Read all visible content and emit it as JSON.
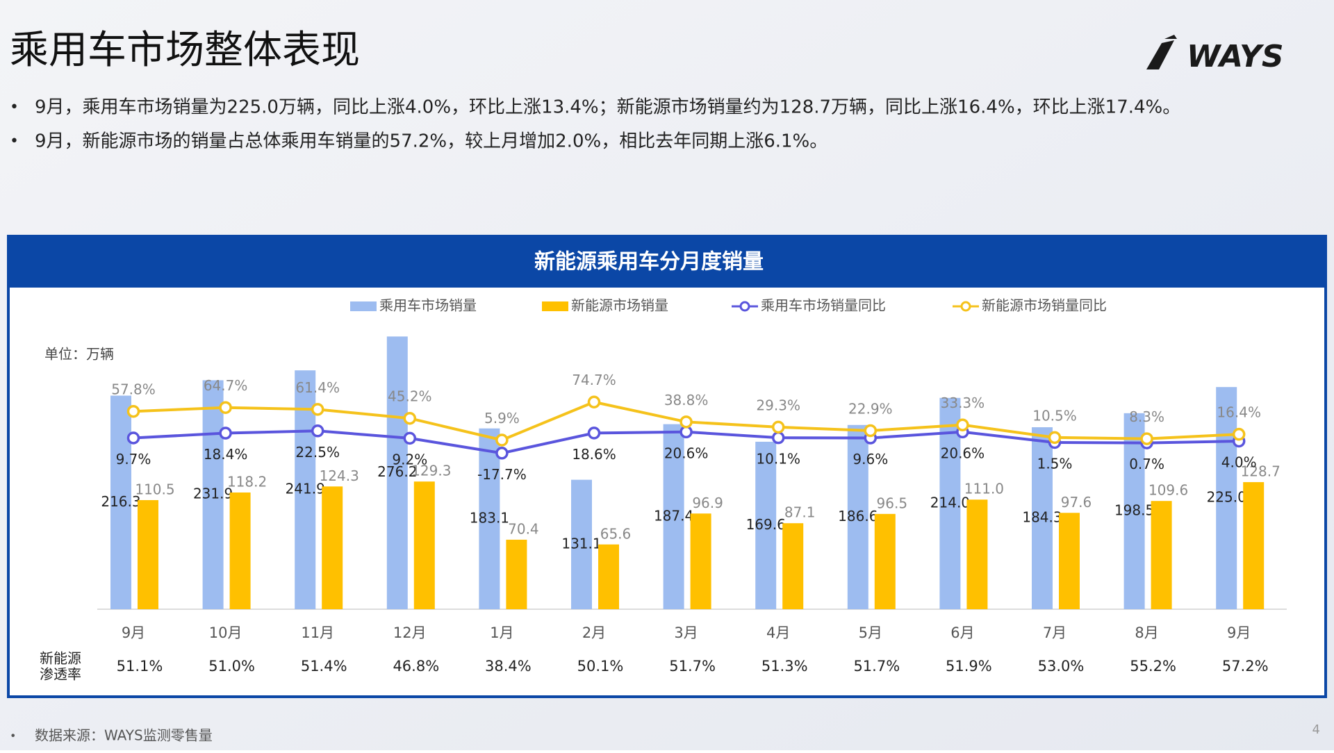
{
  "title": "乘用车市场整体表现",
  "logo": "WAYS",
  "bullets": [
    "9月，乘用车市场销量为225.0万辆，同比上涨4.0%，环比上涨13.4%；新能源市场销量约为128.7万辆，同比上涨16.4%，环比上涨17.4%。",
    "9月，新能源市场的销量占总体乘用车销量的57.2%，较上月增加2.0%，相比去年同期上涨6.1%。"
  ],
  "chart_data": {
    "type": "bar",
    "title": "新能源乘用车分月度销量",
    "unit": "单位：万辆",
    "categories": [
      "9月",
      "10月",
      "11月",
      "12月",
      "1月",
      "2月",
      "3月",
      "4月",
      "5月",
      "6月",
      "7月",
      "8月",
      "9月"
    ],
    "series": [
      {
        "name": "乘用车市场销量",
        "color": "#9dbcf0",
        "values": [
          216.3,
          231.9,
          241.9,
          276.2,
          183.1,
          131.1,
          187.4,
          169.6,
          186.6,
          214.0,
          184.3,
          198.5,
          225.0
        ],
        "value_labels": [
          "216.3",
          "231.9",
          "241.9",
          "276.2",
          "183.1",
          "131.1",
          "187.4",
          "169.6",
          "186.6",
          "214.0",
          "184.3",
          "198.5",
          "225.0"
        ]
      },
      {
        "name": "新能源市场销量",
        "color": "#ffc000",
        "values": [
          110.5,
          118.2,
          124.3,
          129.3,
          70.4,
          65.6,
          96.9,
          87.1,
          96.5,
          111.0,
          97.6,
          109.6,
          128.7
        ],
        "value_labels": [
          "110.5",
          "118.2",
          "124.3",
          "129.3",
          "70.4",
          "65.6",
          "96.9",
          "87.1",
          "96.5",
          "111.0",
          "97.6",
          "109.6",
          "128.7"
        ]
      },
      {
        "name": "乘用车市场销量同比",
        "color": "#5a55dd",
        "type": "line",
        "axis": "y2",
        "values": [
          9.7,
          18.4,
          22.5,
          9.2,
          -17.7,
          18.6,
          20.6,
          10.1,
          9.6,
          20.6,
          1.5,
          0.7,
          4.0
        ],
        "value_labels": [
          "9.7%",
          "18.4%",
          "22.5%",
          "9.2%",
          "-17.7%",
          "18.6%",
          "20.6%",
          "10.1%",
          "9.6%",
          "20.6%",
          "1.5%",
          "0.7%",
          "4.0%"
        ]
      },
      {
        "name": "新能源市场销量同比",
        "color": "#f5c21b",
        "type": "line",
        "axis": "y2",
        "values": [
          57.8,
          64.7,
          61.4,
          45.2,
          5.9,
          74.7,
          38.8,
          29.3,
          22.9,
          33.3,
          10.5,
          8.3,
          16.4
        ],
        "value_labels": [
          "57.8%",
          "64.7%",
          "61.4%",
          "45.2%",
          "5.9%",
          "74.7%",
          "38.8%",
          "29.3%",
          "22.9%",
          "33.3%",
          "10.5%",
          "8.3%",
          "16.4%"
        ]
      }
    ],
    "ylim": [
      0,
      280
    ],
    "y2lim": [
      -300,
      200
    ],
    "legend": "top",
    "penetration": {
      "label": [
        "新能源",
        "渗透率"
      ],
      "values": [
        "51.1%",
        "51.0%",
        "51.4%",
        "46.8%",
        "38.4%",
        "50.1%",
        "51.7%",
        "51.3%",
        "51.7%",
        "51.9%",
        "53.0%",
        "55.2%",
        "57.2%"
      ]
    }
  },
  "source": "数据来源：WAYS监测零售量",
  "page_number": "4"
}
